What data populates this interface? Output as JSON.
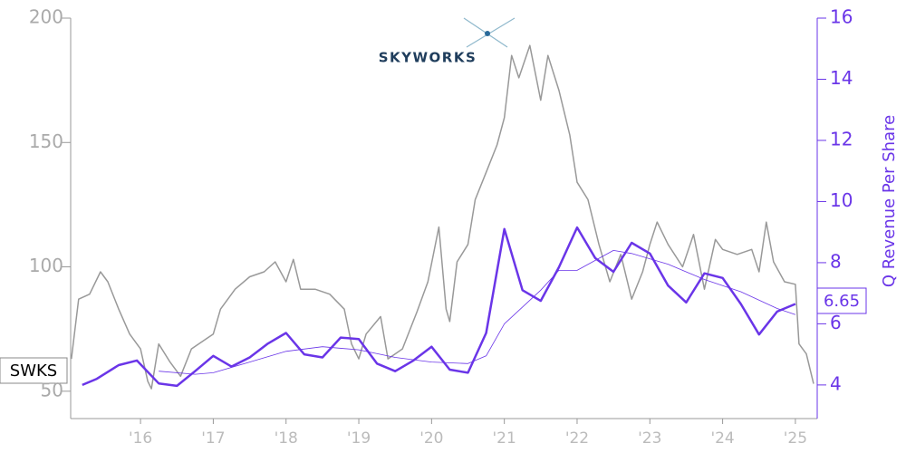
{
  "chart_data": {
    "type": "line",
    "price_label": "SWKS",
    "last_value_label": "6.65",
    "y2_label": "Q Revenue Per Share",
    "logo_text": "SKYWORKS",
    "xlim": [
      2015.04,
      2025.3
    ],
    "xticks": [
      {
        "value": 2016,
        "label": "'16"
      },
      {
        "value": 2017,
        "label": "'17"
      },
      {
        "value": 2018,
        "label": "'18"
      },
      {
        "value": 2019,
        "label": "'19"
      },
      {
        "value": 2020,
        "label": "'20"
      },
      {
        "value": 2021,
        "label": "'21"
      },
      {
        "value": 2022,
        "label": "'22"
      },
      {
        "value": 2023,
        "label": "'23"
      },
      {
        "value": 2024,
        "label": "'24"
      },
      {
        "value": 2025,
        "label": "'25"
      }
    ],
    "ylim": [
      39,
      200
    ],
    "yticks": [
      50,
      100,
      150,
      200
    ],
    "y2lim": [
      2.9,
      16
    ],
    "y2ticks": [
      4,
      6,
      8,
      10,
      12,
      14,
      16
    ],
    "series": [
      {
        "color": "#999999",
        "axis": "y",
        "width": 1.5,
        "x": [
          2015.05,
          2015.15,
          2015.3,
          2015.45,
          2015.55,
          2015.7,
          2015.85,
          2016.0,
          2016.1,
          2016.15,
          2016.25,
          2016.4,
          2016.55,
          2016.7,
          2016.9,
          2017.0,
          2017.1,
          2017.3,
          2017.5,
          2017.7,
          2017.85,
          2018.0,
          2018.1,
          2018.2,
          2018.4,
          2018.6,
          2018.8,
          2018.9,
          2019.0,
          2019.1,
          2019.3,
          2019.4,
          2019.6,
          2019.8,
          2019.95,
          2020.1,
          2020.2,
          2020.25,
          2020.35,
          2020.5,
          2020.6,
          2020.75,
          2020.9,
          2021.0,
          2021.1,
          2021.2,
          2021.35,
          2021.5,
          2021.6,
          2021.75,
          2021.9,
          2022.0,
          2022.15,
          2022.3,
          2022.45,
          2022.6,
          2022.75,
          2022.9,
          2023.0,
          2023.1,
          2023.25,
          2023.45,
          2023.6,
          2023.75,
          2023.9,
          2024.0,
          2024.2,
          2024.4,
          2024.5,
          2024.6,
          2024.7,
          2024.85,
          2025.0,
          2025.05,
          2025.15,
          2025.25
        ],
        "values": [
          63,
          87,
          89,
          98,
          94,
          83,
          73,
          67,
          54,
          51,
          69,
          62,
          56,
          67,
          71,
          73,
          83,
          91,
          96,
          98,
          102,
          94,
          103,
          91,
          91,
          89,
          83,
          69,
          63,
          73,
          80,
          63,
          67,
          82,
          94,
          116,
          83,
          78,
          102,
          109,
          127,
          138,
          149,
          160,
          185,
          176,
          189,
          167,
          185,
          171,
          153,
          134,
          127,
          109,
          94,
          105,
          87,
          98,
          109,
          118,
          109,
          100,
          113,
          91,
          111,
          107,
          105,
          107,
          98,
          118,
          102,
          94,
          93,
          69,
          65,
          53
        ]
      },
      {
        "color": "#6a35e8",
        "axis": "y2",
        "width": 2.5,
        "x": [
          2015.2,
          2015.4,
          2015.7,
          2015.95,
          2016.25,
          2016.5,
          2016.75,
          2017.0,
          2017.25,
          2017.5,
          2017.75,
          2018.0,
          2018.25,
          2018.5,
          2018.75,
          2019.0,
          2019.25,
          2019.5,
          2019.75,
          2020.0,
          2020.25,
          2020.5,
          2020.75,
          2021.0,
          2021.25,
          2021.5,
          2021.75,
          2022.0,
          2022.25,
          2022.5,
          2022.75,
          2023.0,
          2023.25,
          2023.5,
          2023.75,
          2024.0,
          2024.25,
          2024.5,
          2024.75,
          2025.0
        ],
        "values": [
          4.0,
          4.2,
          4.65,
          4.8,
          4.05,
          3.97,
          4.45,
          4.95,
          4.6,
          4.9,
          5.35,
          5.7,
          5.0,
          4.9,
          5.55,
          5.5,
          4.7,
          4.45,
          4.8,
          5.25,
          4.5,
          4.4,
          5.7,
          9.1,
          7.1,
          6.75,
          7.85,
          9.15,
          8.15,
          7.7,
          8.65,
          8.3,
          7.25,
          6.7,
          7.65,
          7.5,
          6.65,
          5.65,
          6.4,
          6.65
        ]
      },
      {
        "color": "#6a35e8",
        "axis": "y2",
        "width": 0.8,
        "x": [
          2016.25,
          2016.75,
          2017.0,
          2017.5,
          2018.0,
          2018.5,
          2019.0,
          2019.5,
          2020.0,
          2020.5,
          2020.75,
          2021.0,
          2021.5,
          2021.75,
          2022.0,
          2022.5,
          2022.75,
          2023.25,
          2023.75,
          2024.25,
          2024.75,
          2025.0
        ],
        "values": [
          4.45,
          4.35,
          4.4,
          4.75,
          5.1,
          5.25,
          5.15,
          4.9,
          4.75,
          4.7,
          4.95,
          6.0,
          7.1,
          7.75,
          7.75,
          8.4,
          8.3,
          7.95,
          7.45,
          7.05,
          6.5,
          6.3
        ]
      }
    ]
  }
}
